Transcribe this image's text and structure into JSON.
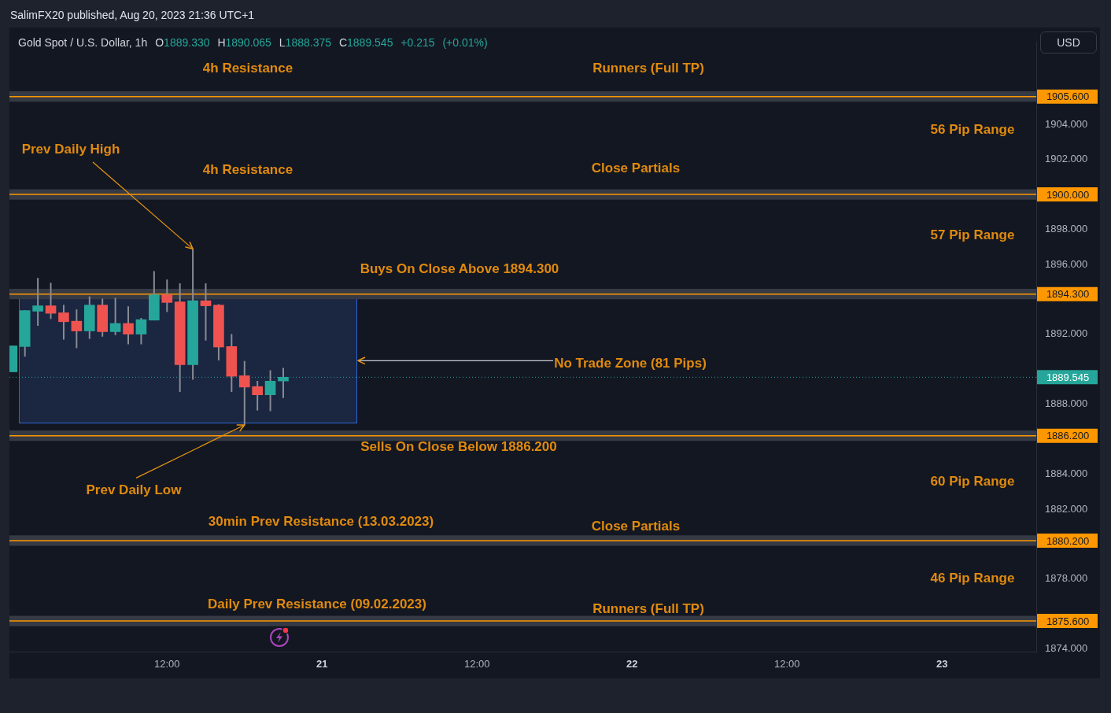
{
  "chart_data": {
    "type": "candlestick",
    "title": "Gold Spot / U.S. Dollar, 1h",
    "subtitle": "O1889.330 H1890.065 L1888.375 C1889.545 +0.215 (+0.01%)",
    "ylabel": "USD",
    "x": [
      "2023-08-20T00:00",
      "2023-08-20T01:00",
      "2023-08-20T02:00",
      "2023-08-20T03:00",
      "2023-08-20T04:00",
      "2023-08-20T05:00",
      "2023-08-20T06:00",
      "2023-08-20T07:00",
      "2023-08-20T08:00",
      "2023-08-20T09:00",
      "2023-08-20T10:00",
      "2023-08-20T11:00",
      "2023-08-20T12:00",
      "2023-08-20T13:00",
      "2023-08-20T14:00",
      "2023-08-20T15:00",
      "2023-08-20T16:00",
      "2023-08-20T17:00",
      "2023-08-20T18:00",
      "2023-08-20T19:00",
      "2023-08-20T20:00",
      "2023-08-20T21:00"
    ],
    "ohlc": [
      [
        1889.85,
        1891.34,
        1889.85,
        1891.34
      ],
      [
        1891.3,
        1893.36,
        1890.74,
        1893.36
      ],
      [
        1893.32,
        1895.21,
        1892.5,
        1893.63
      ],
      [
        1893.63,
        1894.93,
        1892.89,
        1893.2
      ],
      [
        1893.23,
        1893.67,
        1891.71,
        1892.72
      ],
      [
        1892.75,
        1893.41,
        1891.22,
        1892.19
      ],
      [
        1892.19,
        1894.15,
        1891.75,
        1893.67
      ],
      [
        1893.67,
        1894.02,
        1891.88,
        1892.15
      ],
      [
        1892.15,
        1894.07,
        1891.97,
        1892.62
      ],
      [
        1892.62,
        1893.58,
        1891.44,
        1892.01
      ],
      [
        1892.01,
        1892.92,
        1891.44,
        1892.84
      ],
      [
        1892.81,
        1895.6,
        1892.81,
        1894.26
      ],
      [
        1894.26,
        1895.12,
        1893.29,
        1893.82
      ],
      [
        1893.85,
        1894.9,
        1888.72,
        1890.26
      ],
      [
        1890.26,
        1896.88,
        1889.42,
        1893.92
      ],
      [
        1893.92,
        1894.9,
        1891.66,
        1893.63
      ],
      [
        1893.67,
        1893.71,
        1890.52,
        1891.27
      ],
      [
        1891.3,
        1892.0,
        1888.72,
        1889.6
      ],
      [
        1889.63,
        1890.46,
        1886.83,
        1888.98
      ],
      [
        1889.01,
        1889.32,
        1887.66,
        1888.54
      ],
      [
        1888.54,
        1889.93,
        1887.62,
        1889.32
      ],
      [
        1889.33,
        1890.065,
        1888.375,
        1889.545
      ]
    ],
    "colors": [
      "#26a69a",
      "#26a69a",
      "#26a69a",
      "#ef5350",
      "#ef5350",
      "#ef5350",
      "#26a69a",
      "#ef5350",
      "#26a69a",
      "#ef5350",
      "#26a69a",
      "#26a69a",
      "#ef5350",
      "#ef5350",
      "#26a69a",
      "#ef5350",
      "#ef5350",
      "#ef5350",
      "#ef5350",
      "#ef5350",
      "#26a69a",
      "#26a69a"
    ],
    "xlim": [
      "2023-08-19T23:48",
      "2023-08-23T07:18"
    ],
    "xticks": [
      {
        "value": "2023-08-20T12:00",
        "label": "12:00"
      },
      {
        "value": "2023-08-21",
        "label": "21"
      },
      {
        "value": "2023-08-21T12:00",
        "label": "12:00"
      },
      {
        "value": "2023-08-22",
        "label": "22"
      },
      {
        "value": "2023-08-22T12:00",
        "label": "12:00"
      },
      {
        "value": "2023-08-23",
        "label": "23"
      }
    ],
    "ylim": [
      1873.85,
      1908.7
    ],
    "yticks": [
      {
        "value": 1874,
        "label": "1874.000"
      },
      {
        "value": 1878,
        "label": "1878.000"
      },
      {
        "value": 1882,
        "label": "1882.000"
      },
      {
        "value": 1884,
        "label": "1884.000"
      },
      {
        "value": 1888,
        "label": "1888.000"
      },
      {
        "value": 1892,
        "label": "1892.000"
      },
      {
        "value": 1896,
        "label": "1896.000"
      },
      {
        "value": 1898,
        "label": "1898.000"
      },
      {
        "value": 1902,
        "label": "1902.000"
      },
      {
        "value": 1904,
        "label": "1904.000"
      }
    ],
    "bands": [
      {
        "axis": "y",
        "from": 1905.3,
        "to": 1905.9,
        "color": "#363a44"
      },
      {
        "axis": "y",
        "from": 1899.7,
        "to": 1900.3,
        "color": "#363a44"
      },
      {
        "axis": "y",
        "from": 1894.0,
        "to": 1894.6,
        "color": "#363a44"
      },
      {
        "axis": "y",
        "from": 1885.9,
        "to": 1886.5,
        "color": "#363a44"
      },
      {
        "axis": "y",
        "from": 1879.9,
        "to": 1880.5,
        "color": "#363a44"
      },
      {
        "axis": "y",
        "from": 1875.3,
        "to": 1875.9,
        "color": "#363a44"
      }
    ],
    "ref_lines": [
      {
        "axis": "y",
        "value": 1905.6,
        "label": "1905.600",
        "color": "#ff9800"
      },
      {
        "axis": "y",
        "value": 1900,
        "label": "1900.000",
        "color": "#ff9800"
      },
      {
        "axis": "y",
        "value": 1894.3,
        "label": "1894.300",
        "color": "#ff9800"
      },
      {
        "axis": "y",
        "value": 1886.2,
        "label": "1886.200",
        "color": "#ff9800"
      },
      {
        "axis": "y",
        "value": 1880.2,
        "label": "1880.200",
        "color": "#ff9800"
      },
      {
        "axis": "y",
        "value": 1875.6,
        "label": "1875.600",
        "color": "#ff9800"
      },
      {
        "axis": "y",
        "value": 1889.545,
        "label": "1889.545",
        "color": "#26a69a",
        "line_style": "dotted"
      }
    ],
    "annotations": [
      "SalimFX20 published, Aug 20, 2023 21:36 UTC+1",
      "4h Resistance",
      "Runners (Full TP)",
      "56 Pip Range",
      {
        "text": "Prev Daily High",
        "x": "2023-08-20T14:00",
        "y": 1896.88
      },
      "4h Resistance",
      "Close Partials",
      "57 Pip Range",
      "Buys On Close Above 1894.300",
      "No Trade Zone (81 Pips)",
      "Sells On Close Below 1886.200",
      {
        "text": "Prev Daily Low",
        "x": "2023-08-20T18:00",
        "y": 1886.83
      },
      "60 Pip Range",
      "30min Prev Resistance (13.03.2023)",
      "Close Partials",
      "46 Pip Range",
      "Daily Prev Resistance (09.02.2023)",
      "Runners (Full TP)"
    ]
  }
}
